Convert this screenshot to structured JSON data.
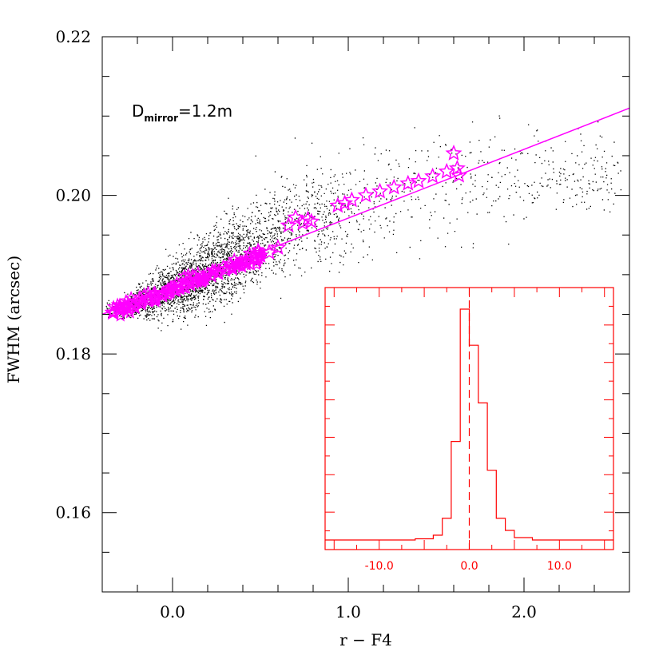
{
  "chart_data": [
    {
      "type": "scatter",
      "xlabel": "r − F4",
      "ylabel": "FWHM (arcsec)",
      "xlim": [
        -0.4,
        2.6
      ],
      "ylim": [
        0.15,
        0.22
      ],
      "x_ticks": [
        {
          "value": 0.0,
          "label": "0.0"
        },
        {
          "value": 1.0,
          "label": "1.0"
        },
        {
          "value": 2.0,
          "label": "2.0"
        }
      ],
      "y_ticks": [
        {
          "value": 0.16,
          "label": "0.16"
        },
        {
          "value": 0.18,
          "label": "0.18"
        },
        {
          "value": 0.2,
          "label": "0.20"
        },
        {
          "value": 0.22,
          "label": "0.22"
        }
      ],
      "annotation": {
        "main": "D",
        "sub": "mirror",
        "rest": "=1.2m"
      },
      "colors": {
        "scatter": "#000000",
        "fit": "#ff00ff",
        "inset": "#ff0000"
      },
      "fit_line": {
        "x": [
          -0.4,
          2.6
        ],
        "y": [
          0.185,
          0.211
        ]
      },
      "cloud": {
        "x_centers": [
          -0.3,
          0.0,
          0.3,
          0.6,
          1.0,
          1.4,
          1.8,
          2.2,
          2.5
        ],
        "y_centers": [
          0.1856,
          0.1882,
          0.1915,
          0.1955,
          0.1985,
          0.2005,
          0.2017,
          0.2024,
          0.2028
        ],
        "y_spread": [
          0.0006,
          0.0018,
          0.0024,
          0.0028,
          0.0032,
          0.0035,
          0.003,
          0.0026,
          0.0022
        ]
      },
      "fit_points": {
        "x": [
          -0.34,
          -0.3,
          -0.26,
          -0.22,
          -0.18,
          -0.14,
          -0.1,
          -0.06,
          -0.02,
          0.02,
          0.06,
          0.1,
          0.14,
          0.18,
          0.22,
          0.26,
          0.3,
          0.34,
          0.38,
          0.42,
          0.46,
          0.5,
          0.55,
          0.6,
          0.66,
          0.7,
          0.74,
          0.77,
          0.79,
          0.94,
          0.98,
          1.02,
          1.1,
          1.18,
          1.26,
          1.34,
          1.4,
          1.48,
          1.56,
          1.6,
          1.62,
          1.63
        ],
        "y": [
          0.1852,
          0.1855,
          0.1858,
          0.1861,
          0.1864,
          0.1867,
          0.1871,
          0.1874,
          0.1878,
          0.1881,
          0.1885,
          0.1888,
          0.1892,
          0.1895,
          0.1899,
          0.1902,
          0.1906,
          0.1909,
          0.1913,
          0.1916,
          0.192,
          0.1924,
          0.1928,
          0.1934,
          0.1962,
          0.1972,
          0.1965,
          0.197,
          0.1967,
          0.1987,
          0.199,
          0.1994,
          0.2,
          0.2005,
          0.201,
          0.2015,
          0.2018,
          0.2024,
          0.203,
          0.2053,
          0.2034,
          0.2025
        ]
      }
    },
    {
      "type": "histogram",
      "xlim": [
        -16,
        16
      ],
      "x_ticks": [
        {
          "value": -10,
          "label": "-10.0"
        },
        {
          "value": 0,
          "label": "0.0"
        },
        {
          "value": 10,
          "label": "10.0"
        }
      ],
      "ylim": [
        0,
        1.0
      ],
      "reference_line_x": 0.0,
      "bins": [
        {
          "x0": -16,
          "x1": -6,
          "value": 0.0
        },
        {
          "x0": -6,
          "x1": -4,
          "value": 0.005
        },
        {
          "x0": -4,
          "x1": -3,
          "value": 0.02
        },
        {
          "x0": -3,
          "x1": -2,
          "value": 0.09
        },
        {
          "x0": -2,
          "x1": -1,
          "value": 0.41
        },
        {
          "x0": -1,
          "x1": 0,
          "value": 0.96
        },
        {
          "x0": 0,
          "x1": 1,
          "value": 0.81
        },
        {
          "x0": 1,
          "x1": 2,
          "value": 0.57
        },
        {
          "x0": 2,
          "x1": 3,
          "value": 0.29
        },
        {
          "x0": 3,
          "x1": 4,
          "value": 0.09
        },
        {
          "x0": 4,
          "x1": 5,
          "value": 0.04
        },
        {
          "x0": 5,
          "x1": 7,
          "value": 0.01
        },
        {
          "x0": 7,
          "x1": 16,
          "value": 0.0
        }
      ]
    }
  ]
}
